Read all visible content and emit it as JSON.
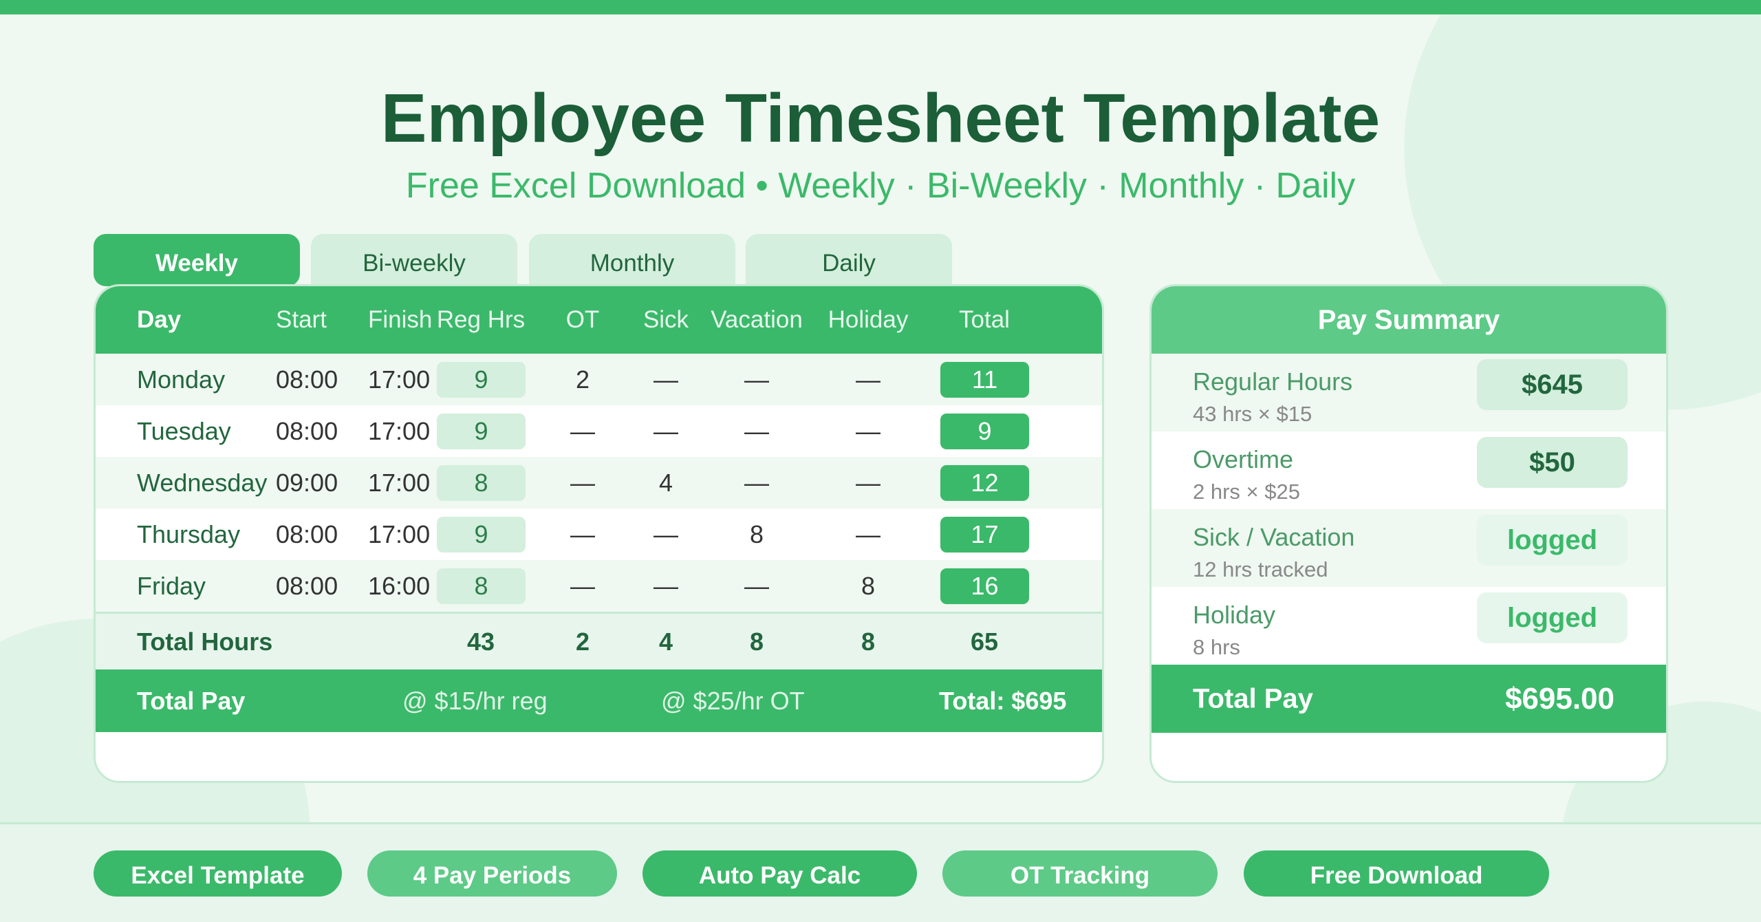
{
  "header": {
    "title": "Employee Timesheet Template",
    "subtitle": "Free Excel Download • Weekly · Bi-Weekly · Monthly · Daily"
  },
  "tabs": [
    {
      "label": "Weekly",
      "active": true
    },
    {
      "label": "Bi-weekly"
    },
    {
      "label": "Monthly"
    },
    {
      "label": "Daily"
    }
  ],
  "table": {
    "columns": [
      "Day",
      "Start",
      "Finish",
      "Reg Hrs",
      "OT",
      "Sick",
      "Vacation",
      "Holiday",
      "Total"
    ],
    "rows": [
      {
        "day": "Monday",
        "start": "08:00",
        "finish": "17:00",
        "reg": "9",
        "ot": "2",
        "sick": "—",
        "vac": "—",
        "hol": "—",
        "total": "11"
      },
      {
        "day": "Tuesday",
        "start": "08:00",
        "finish": "17:00",
        "reg": "9",
        "ot": "—",
        "sick": "—",
        "vac": "—",
        "hol": "—",
        "total": "9"
      },
      {
        "day": "Wednesday",
        "start": "09:00",
        "finish": "17:00",
        "reg": "8",
        "ot": "—",
        "sick": "4",
        "vac": "—",
        "hol": "—",
        "total": "12"
      },
      {
        "day": "Thursday",
        "start": "08:00",
        "finish": "17:00",
        "reg": "9",
        "ot": "—",
        "sick": "—",
        "vac": "8",
        "hol": "—",
        "total": "17"
      },
      {
        "day": "Friday",
        "start": "08:00",
        "finish": "16:00",
        "reg": "8",
        "ot": "—",
        "sick": "—",
        "vac": "—",
        "hol": "8",
        "total": "16"
      }
    ],
    "totals": {
      "label": "Total Hours",
      "reg": "43",
      "ot": "2",
      "sick": "4",
      "vac": "8",
      "hol": "8",
      "total": "65"
    },
    "pay": {
      "label": "Total Pay",
      "reg_rate": "@ $15/hr reg",
      "ot_rate": "@ $25/hr OT",
      "total": "Total: $695"
    }
  },
  "summary": {
    "title": "Pay Summary",
    "items": [
      {
        "label": "Regular Hours",
        "sub": "43 hrs × $15",
        "value": "$645"
      },
      {
        "label": "Overtime",
        "sub": "2 hrs × $25",
        "value": "$50"
      },
      {
        "label": "Sick / Vacation",
        "sub": "12 hrs tracked",
        "value": "logged"
      },
      {
        "label": "Holiday",
        "sub": "8 hrs",
        "value": "logged"
      }
    ],
    "total_label": "Total Pay",
    "total_value": "$695.00"
  },
  "features": [
    "Excel Template",
    "4 Pay Periods",
    "Auto Pay Calc",
    "OT Tracking",
    "Free Download"
  ],
  "colors": {
    "accent": "#3bb96a",
    "dark": "#1b5e38",
    "light": "#d4efdd"
  }
}
